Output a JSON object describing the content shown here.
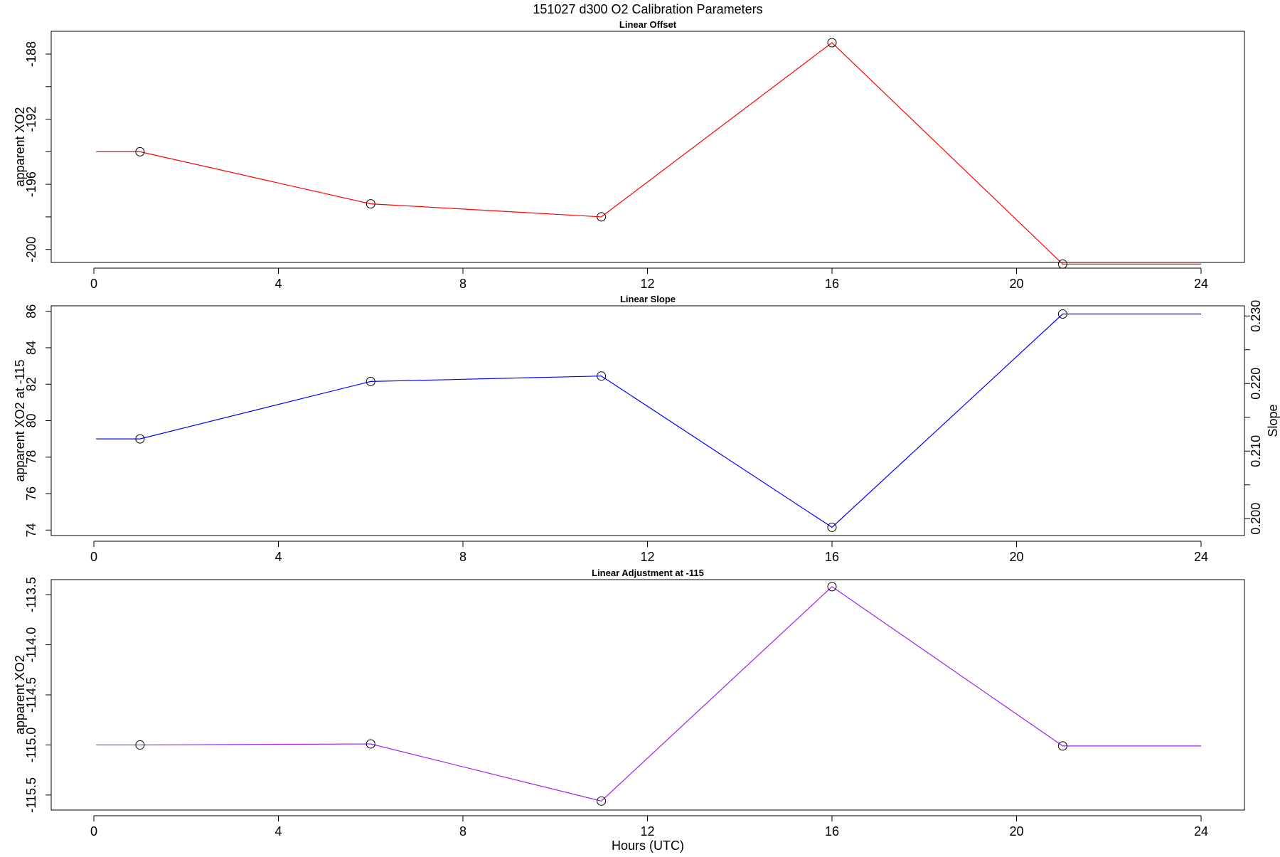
{
  "page": {
    "title": "151027   d300   O2 Calibration Parameters"
  },
  "chart_data": [
    {
      "type": "line",
      "title": "Linear Offset",
      "xlabel": "",
      "ylabel": "apparent XO2",
      "xlim": [
        0,
        24
      ],
      "ylim": [
        -200.8,
        -186.6
      ],
      "xticks": [
        "0",
        "4",
        "8",
        "12",
        "16",
        "20",
        "24"
      ],
      "yticks": [
        "-188",
        "-192",
        "-196",
        "-200"
      ],
      "ytick_values": [
        -188,
        -192,
        -196,
        -200
      ],
      "minor_yticks": [
        -190,
        -194,
        -198
      ],
      "color": "#ff0000",
      "x": [
        0.05,
        1,
        6,
        11,
        16,
        21,
        24
      ],
      "y": [
        -194.0,
        -194.0,
        -197.2,
        -198.0,
        -187.3,
        -200.9,
        -200.9
      ],
      "markers": [
        1,
        6,
        11,
        16,
        21
      ]
    },
    {
      "type": "line",
      "title": "Linear Slope",
      "xlabel": "",
      "ylabel": "apparent XO2 at -115",
      "ylabel_right": "Slope",
      "xlim": [
        0,
        24
      ],
      "ylim": [
        73.7,
        86.3
      ],
      "xticks": [
        "0",
        "4",
        "8",
        "12",
        "16",
        "20",
        "24"
      ],
      "yticks": [
        "74",
        "76",
        "78",
        "80",
        "82",
        "84",
        "86"
      ],
      "ytick_values": [
        74,
        76,
        78,
        80,
        82,
        84,
        86
      ],
      "yticks_right": [
        "0.200",
        "0.210",
        "0.220",
        "0.230"
      ],
      "ytick_right_values": [
        0.2,
        0.21,
        0.22,
        0.23
      ],
      "y_right_lim": [
        0.1975,
        0.2315
      ],
      "minor_yticks_right": [
        0.205,
        0.215,
        0.225
      ],
      "color": "#0000ff",
      "x": [
        0.05,
        1,
        6,
        11,
        16,
        21,
        24
      ],
      "y": [
        79.0,
        79.0,
        82.15,
        82.45,
        74.15,
        85.85,
        85.85
      ],
      "markers": [
        1,
        6,
        11,
        16,
        21
      ]
    },
    {
      "type": "line",
      "title": "Linear Adjustment at -115",
      "xlabel": "Hours (UTC)",
      "ylabel": "apparent XO2",
      "xlim": [
        0,
        24
      ],
      "ylim": [
        -115.65,
        -113.35
      ],
      "xticks": [
        "0",
        "4",
        "8",
        "12",
        "16",
        "20",
        "24"
      ],
      "yticks": [
        "-113.5",
        "-114.0",
        "-114.5",
        "-115.0",
        "-115.5"
      ],
      "ytick_values": [
        -113.5,
        -114.0,
        -114.5,
        -115.0,
        -115.5
      ],
      "color": "#a020f0",
      "x": [
        0.05,
        1,
        6,
        11,
        16,
        21,
        24
      ],
      "y": [
        -115.0,
        -115.0,
        -114.99,
        -115.56,
        -113.42,
        -115.01,
        -115.01
      ],
      "markers": [
        1,
        6,
        11,
        16,
        21
      ]
    }
  ]
}
